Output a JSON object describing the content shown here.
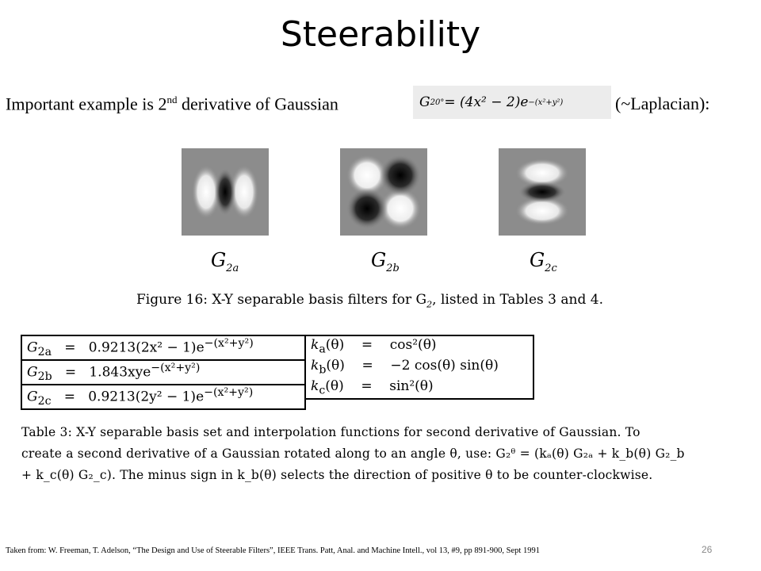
{
  "slide": {
    "title": "Steerability",
    "intro_pre": "Important example is 2",
    "intro_sup": "nd",
    "intro_post": " derivative of Gaussian",
    "intro_suffix": "(~Laplacian):",
    "equation": {
      "lhs_base": "G",
      "lhs_sub": "2",
      "lhs_sup": "0°",
      "rhs_main": " = (4x² − 2)e",
      "rhs_exp": "−(x²+y²)"
    },
    "page_number": "26",
    "footnote": "Taken from: W. Freeman, T. Adelson, “The Design and Use of Steerable Filters”, IEEE Trans. Patt, Anal. and Machine Intell., vol 13, #9, pp 891-900, Sept 1991"
  },
  "figure": {
    "filters": [
      {
        "label_base": "G",
        "label_sub": "2a",
        "icon": "vertical-second-derivative-filter"
      },
      {
        "label_base": "G",
        "label_sub": "2b",
        "icon": "diagonal-xy-filter"
      },
      {
        "label_base": "G",
        "label_sub": "2c",
        "icon": "horizontal-second-derivative-filter"
      }
    ],
    "caption_pre": "Figure 16:  X-Y separable basis filters for G",
    "caption_sub": "2",
    "caption_post": ", listed in Tables 3 and 4."
  },
  "table": {
    "basis": [
      {
        "name": "G",
        "sub": "2a",
        "eq": "=",
        "expr": "0.9213(2x² − 1)e",
        "exp": "−(x²+y²)"
      },
      {
        "name": "G",
        "sub": "2b",
        "eq": "=",
        "expr": "1.843xye",
        "exp": "−(x²+y²)"
      },
      {
        "name": "G",
        "sub": "2c",
        "eq": "=",
        "expr": "0.9213(2y² − 1)e",
        "exp": "−(x²+y²)"
      }
    ],
    "interp": [
      {
        "name": "k",
        "sub": "a",
        "arg": "(θ)",
        "eq": "=",
        "expr": "cos²(θ)"
      },
      {
        "name": "k",
        "sub": "b",
        "arg": "(θ)",
        "eq": "=",
        "expr": "−2 cos(θ) sin(θ)"
      },
      {
        "name": "k",
        "sub": "c",
        "arg": "(θ)",
        "eq": "=",
        "expr": "sin²(θ)"
      }
    ],
    "caption_line1": "Table 3:  X-Y separable basis set and interpolation functions for second derivative of Gaussian.  To",
    "caption_line2": "create a second derivative of a Gaussian rotated along to an angle θ, use: G₂ᶿ = (kₐ(θ) G₂ₐ + k_b(θ) G₂_b",
    "caption_line3": "+ k_c(θ) G₂_c).  The minus sign in k_b(θ) selects the direction of positive θ to be counter-clockwise."
  }
}
